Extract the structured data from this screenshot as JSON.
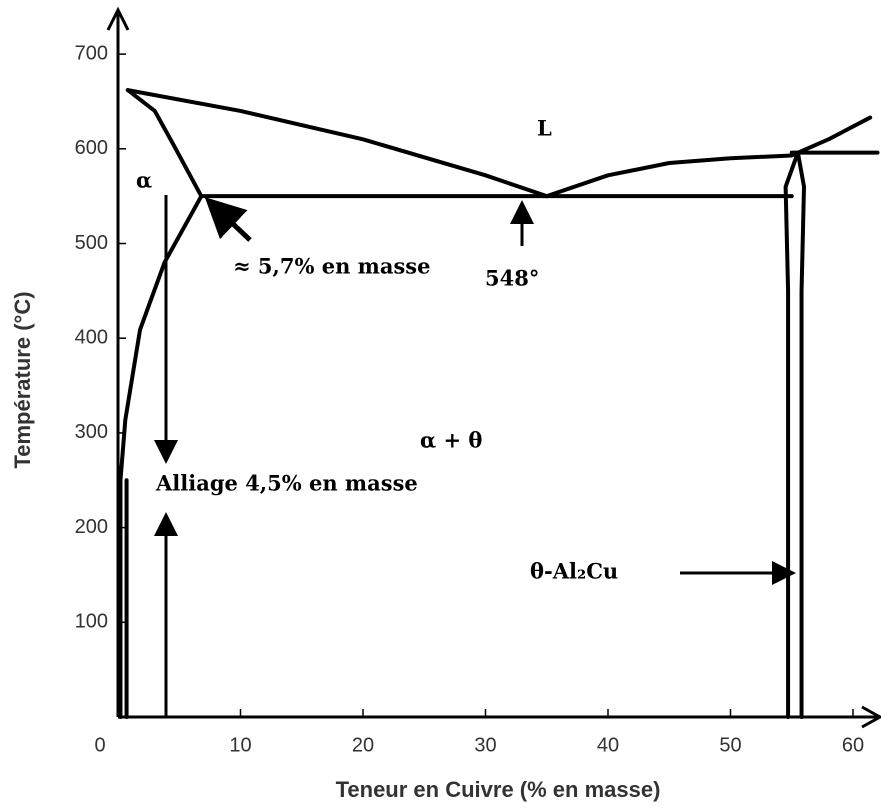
{
  "chart_data": {
    "type": "line",
    "xlabel": "Teneur en Cuivre (% en masse)",
    "ylabel": "Température (°C)",
    "xlim": [
      0,
      62
    ],
    "ylim": [
      0,
      745
    ],
    "xticks": [
      0,
      10,
      20,
      30,
      40,
      50,
      60
    ],
    "yticks": [
      100,
      200,
      300,
      400,
      500,
      600,
      700
    ],
    "annotations": [
      "L",
      "α",
      "≈ 5,7% en masse",
      "548°",
      "α + θ",
      "Alliage 4,5%  en masse",
      "θ-Al₂Cu"
    ],
    "series": [
      {
        "color": "#000000",
        "x": [
          0.8,
          10,
          20,
          30,
          35
        ],
        "values": [
          662,
          640,
          610,
          572,
          550
        ]
      },
      {
        "color": "#000000",
        "x": [
          35,
          40,
          45,
          50,
          55,
          58,
          61.4
        ],
        "values": [
          550,
          572,
          585,
          590,
          593,
          610,
          633
        ]
      },
      {
        "color": "#000000",
        "x": [
          55,
          62
        ],
        "values": [
          596,
          596
        ]
      },
      {
        "color": "#000000",
        "x": [
          6.8,
          55
        ],
        "values": [
          550,
          550
        ]
      },
      {
        "color": "#000000",
        "x": [
          0.8,
          3,
          4.5,
          6.8
        ],
        "values": [
          662,
          640,
          605,
          550
        ]
      },
      {
        "color": "#000000",
        "x": [
          6.8,
          3.8,
          1.8,
          0.6,
          0.2,
          0.2
        ],
        "values": [
          550,
          480,
          409,
          314,
          250,
          0
        ]
      },
      {
        "color": "#000000",
        "x": [
          0.7,
          0.7
        ],
        "values": [
          250,
          0
        ]
      },
      {
        "color": "#000000",
        "x": [
          55.5,
          54.5,
          54.7,
          54.7
        ],
        "values": [
          596,
          560,
          450,
          0
        ]
      },
      {
        "color": "#000000",
        "x": [
          55.5,
          56,
          55.8,
          55.8
        ],
        "values": [
          596,
          560,
          450,
          0
        ]
      }
    ]
  }
}
